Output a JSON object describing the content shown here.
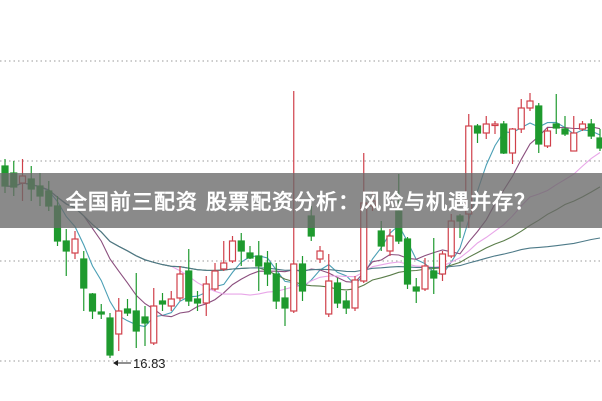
{
  "title": "全国前三配资 股票配资分析：风险与机遇并存？",
  "colors": {
    "up": "#d0404a",
    "down": "#1e9a2e",
    "grid": "#9a9a9a",
    "ma": [
      "#4a9fb5",
      "#8b4f7e",
      "#e8a6e8",
      "#5a7d4a",
      "#4d7a88"
    ]
  },
  "chart_data": {
    "type": "candlestick",
    "ylim": [
      16.4,
      20.41
    ],
    "grid": "horizontal dotted",
    "moving_averages": [
      5,
      10,
      20,
      30,
      60
    ],
    "annotation": {
      "label": "16.83",
      "value": 16.83,
      "candle_index": 12
    },
    "ohlc": [
      [
        18.75,
        18.82,
        18.48,
        18.55
      ],
      [
        18.68,
        18.8,
        18.45,
        18.54
      ],
      [
        18.58,
        18.82,
        18.4,
        18.65
      ],
      [
        18.62,
        18.75,
        18.4,
        18.52
      ],
      [
        18.55,
        18.68,
        18.35,
        18.45
      ],
      [
        18.5,
        18.6,
        18.3,
        18.35
      ],
      [
        18.35,
        18.45,
        17.95,
        18.0
      ],
      [
        18.0,
        18.12,
        17.65,
        17.9
      ],
      [
        17.88,
        18.1,
        17.82,
        18.02
      ],
      [
        17.82,
        17.9,
        17.3,
        17.53
      ],
      [
        17.47,
        17.48,
        17.22,
        17.3
      ],
      [
        17.29,
        17.37,
        17.22,
        17.27
      ],
      [
        17.23,
        17.28,
        16.83,
        16.86
      ],
      [
        17.07,
        17.43,
        16.9,
        17.3
      ],
      [
        17.32,
        17.42,
        17.25,
        17.28
      ],
      [
        17.3,
        17.68,
        16.93,
        17.1
      ],
      [
        17.24,
        17.35,
        16.95,
        17.18
      ],
      [
        16.98,
        17.53,
        16.96,
        17.35
      ],
      [
        17.4,
        17.48,
        17.3,
        17.37
      ],
      [
        17.35,
        17.5,
        17.3,
        17.42
      ],
      [
        17.43,
        17.75,
        17.4,
        17.67
      ],
      [
        17.7,
        17.92,
        17.35,
        17.4
      ],
      [
        17.42,
        17.5,
        17.3,
        17.38
      ],
      [
        17.38,
        17.65,
        17.25,
        17.57
      ],
      [
        17.52,
        17.78,
        17.5,
        17.7
      ],
      [
        17.72,
        18.0,
        17.7,
        17.78
      ],
      [
        17.8,
        18.05,
        17.78,
        18.0
      ],
      [
        18.0,
        18.08,
        17.75,
        17.9
      ],
      [
        17.88,
        17.95,
        17.82,
        17.83
      ],
      [
        17.85,
        18.0,
        17.5,
        17.75
      ],
      [
        17.78,
        17.9,
        17.55,
        17.67
      ],
      [
        17.67,
        17.78,
        17.32,
        17.4
      ],
      [
        17.43,
        17.55,
        17.15,
        17.33
      ],
      [
        17.3,
        19.5,
        17.28,
        17.77
      ],
      [
        17.77,
        17.85,
        17.4,
        17.5
      ],
      [
        18.25,
        18.35,
        18.0,
        18.05
      ],
      [
        17.82,
        17.95,
        17.78,
        17.9
      ],
      [
        17.27,
        17.87,
        17.24,
        17.6
      ],
      [
        17.58,
        17.63,
        17.33,
        17.38
      ],
      [
        17.4,
        17.5,
        17.27,
        17.33
      ],
      [
        17.33,
        17.65,
        17.3,
        17.61
      ],
      [
        17.6,
        18.88,
        17.58,
        18.38
      ],
      [
        18.35,
        18.5,
        18.3,
        18.4
      ],
      [
        18.1,
        18.2,
        17.9,
        17.95
      ],
      [
        17.9,
        18.12,
        17.85,
        18.05
      ],
      [
        18.3,
        18.67,
        17.97,
        18.0
      ],
      [
        18.02,
        18.04,
        17.52,
        17.57
      ],
      [
        17.54,
        17.63,
        17.38,
        17.5
      ],
      [
        17.52,
        17.83,
        17.5,
        17.75
      ],
      [
        17.7,
        18.03,
        17.47,
        17.63
      ],
      [
        17.67,
        17.9,
        17.6,
        17.87
      ],
      [
        17.85,
        18.27,
        17.83,
        18.2
      ],
      [
        18.25,
        18.27,
        18.03,
        18.2
      ],
      [
        18.27,
        19.27,
        18.13,
        19.15
      ],
      [
        19.15,
        19.17,
        18.98,
        19.08
      ],
      [
        19.08,
        19.25,
        19.02,
        19.17
      ],
      [
        19.16,
        19.2,
        19.07,
        19.17
      ],
      [
        19.17,
        19.2,
        18.87,
        18.88
      ],
      [
        18.88,
        19.13,
        18.77,
        19.12
      ],
      [
        19.12,
        19.42,
        19.08,
        19.33
      ],
      [
        19.33,
        19.48,
        19.3,
        19.4
      ],
      [
        19.35,
        19.38,
        18.88,
        18.97
      ],
      [
        18.95,
        19.13,
        18.93,
        19.1
      ],
      [
        19.17,
        19.47,
        19.07,
        19.13
      ],
      [
        19.12,
        19.25,
        19.05,
        19.07
      ],
      [
        18.9,
        19.25,
        18.9,
        19.08
      ],
      [
        19.12,
        19.2,
        19.1,
        19.17
      ],
      [
        19.17,
        19.22,
        19.02,
        19.05
      ],
      [
        19.03,
        19.12,
        18.9,
        18.93
      ]
    ]
  }
}
